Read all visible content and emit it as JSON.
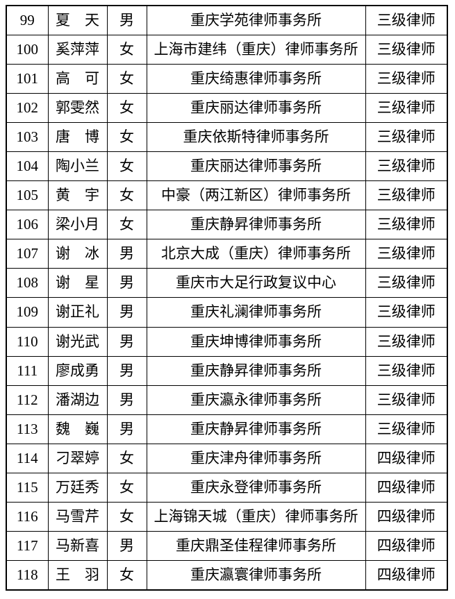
{
  "colors": {
    "page_background": "#ffffff",
    "table_border": "#000000",
    "text": "#000000"
  },
  "table": {
    "column_keys": [
      "no",
      "name",
      "gender",
      "firm",
      "level"
    ],
    "rows": [
      {
        "no": "99",
        "name": "夏　天",
        "gender": "男",
        "firm": "重庆学苑律师事务所",
        "level": "三级律师"
      },
      {
        "no": "100",
        "name": "奚萍萍",
        "gender": "女",
        "firm": "上海市建纬（重庆）律师事务所",
        "level": "三级律师"
      },
      {
        "no": "101",
        "name": "高　可",
        "gender": "女",
        "firm": "重庆绮惠律师事务所",
        "level": "三级律师"
      },
      {
        "no": "102",
        "name": "郭雯然",
        "gender": "女",
        "firm": "重庆丽达律师事务所",
        "level": "三级律师"
      },
      {
        "no": "103",
        "name": "唐　博",
        "gender": "女",
        "firm": "重庆依斯特律师事务所",
        "level": "三级律师"
      },
      {
        "no": "104",
        "name": "陶小兰",
        "gender": "女",
        "firm": "重庆丽达律师事务所",
        "level": "三级律师"
      },
      {
        "no": "105",
        "name": "黄　宇",
        "gender": "女",
        "firm": "中豪（两江新区）律师事务所",
        "level": "三级律师"
      },
      {
        "no": "106",
        "name": "梁小月",
        "gender": "女",
        "firm": "重庆静昇律师事务所",
        "level": "三级律师"
      },
      {
        "no": "107",
        "name": "谢　冰",
        "gender": "男",
        "firm": "北京大成（重庆）律师事务所",
        "level": "三级律师"
      },
      {
        "no": "108",
        "name": "谢　星",
        "gender": "男",
        "firm": "重庆市大足行政复议中心",
        "level": "三级律师"
      },
      {
        "no": "109",
        "name": "谢正礼",
        "gender": "男",
        "firm": "重庆礼澜律师事务所",
        "level": "三级律师"
      },
      {
        "no": "110",
        "name": "谢光武",
        "gender": "男",
        "firm": "重庆坤博律师事务所",
        "level": "三级律师"
      },
      {
        "no": "111",
        "name": "廖成勇",
        "gender": "男",
        "firm": "重庆静昇律师事务所",
        "level": "三级律师"
      },
      {
        "no": "112",
        "name": "潘湖边",
        "gender": "男",
        "firm": "重庆瀛永律师事务所",
        "level": "三级律师"
      },
      {
        "no": "113",
        "name": "魏　巍",
        "gender": "男",
        "firm": "重庆静昇律师事务所",
        "level": "三级律师"
      },
      {
        "no": "114",
        "name": "刁翠婷",
        "gender": "女",
        "firm": "重庆津舟律师事务所",
        "level": "四级律师"
      },
      {
        "no": "115",
        "name": "万廷秀",
        "gender": "女",
        "firm": "重庆永登律师事务所",
        "level": "四级律师"
      },
      {
        "no": "116",
        "name": "马雪芹",
        "gender": "女",
        "firm": "上海锦天城（重庆）律师事务所",
        "level": "四级律师"
      },
      {
        "no": "117",
        "name": "马新喜",
        "gender": "男",
        "firm": "重庆鼎圣佳程律师事务所",
        "level": "四级律师"
      },
      {
        "no": "118",
        "name": "王　羽",
        "gender": "女",
        "firm": "重庆瀛寰律师事务所",
        "level": "四级律师"
      }
    ]
  }
}
